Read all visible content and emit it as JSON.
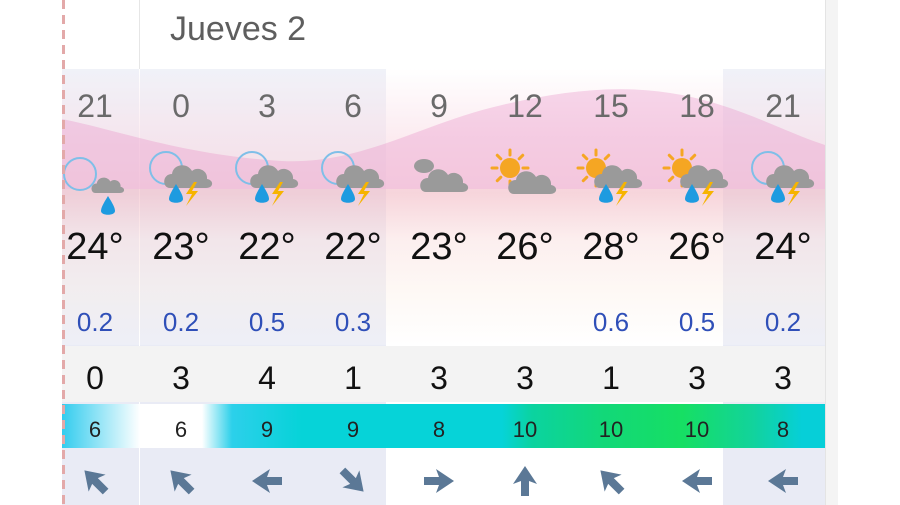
{
  "day_label": "Jueves 2",
  "columns": [
    {
      "hour": "21",
      "icon": "night-thunderstorm-icon",
      "temp": "24°",
      "rain": "0.2",
      "uv": "0",
      "wind": "6",
      "wind_dir": "arrow-northwest-icon"
    },
    {
      "hour": "0",
      "icon": "night-thunderstorm-icon",
      "temp": "23°",
      "rain": "0.2",
      "uv": "3",
      "wind": "6",
      "wind_dir": "arrow-northwest-icon"
    },
    {
      "hour": "3",
      "icon": "night-thunderstorm-icon",
      "temp": "22°",
      "rain": "0.5",
      "uv": "4",
      "wind": "9",
      "wind_dir": "arrow-west-icon"
    },
    {
      "hour": "6",
      "icon": "night-thunderstorm-icon",
      "temp": "22°",
      "rain": "0.3",
      "uv": "1",
      "wind": "9",
      "wind_dir": "arrow-southeast-icon"
    },
    {
      "hour": "9",
      "icon": "cloudy-icon",
      "temp": "23°",
      "rain": "",
      "uv": "3",
      "wind": "8",
      "wind_dir": "arrow-east-icon"
    },
    {
      "hour": "12",
      "icon": "partly-cloudy-icon",
      "temp": "26°",
      "rain": "",
      "uv": "3",
      "wind": "10",
      "wind_dir": "arrow-north-icon"
    },
    {
      "hour": "15",
      "icon": "sun-thunderstorm-icon",
      "temp": "28°",
      "rain": "0.6",
      "uv": "1",
      "wind": "10",
      "wind_dir": "arrow-northwest-icon"
    },
    {
      "hour": "18",
      "icon": "sun-thunderstorm-icon",
      "temp": "26°",
      "rain": "0.5",
      "uv": "3",
      "wind": "10",
      "wind_dir": "arrow-west-icon"
    },
    {
      "hour": "21",
      "icon": "night-thunderstorm-icon",
      "temp": "24°",
      "rain": "0.2",
      "uv": "3",
      "wind": "8",
      "wind_dir": "arrow-west-icon"
    }
  ],
  "colors": {
    "rain_text": "#2f4fb8",
    "arrow": "#5b7896",
    "cloud": "#9a9a9a",
    "sun": "#f5a623",
    "rain_drop": "#1e9be0",
    "bolt": "#f6b400",
    "moon": "#7fbfe8"
  }
}
